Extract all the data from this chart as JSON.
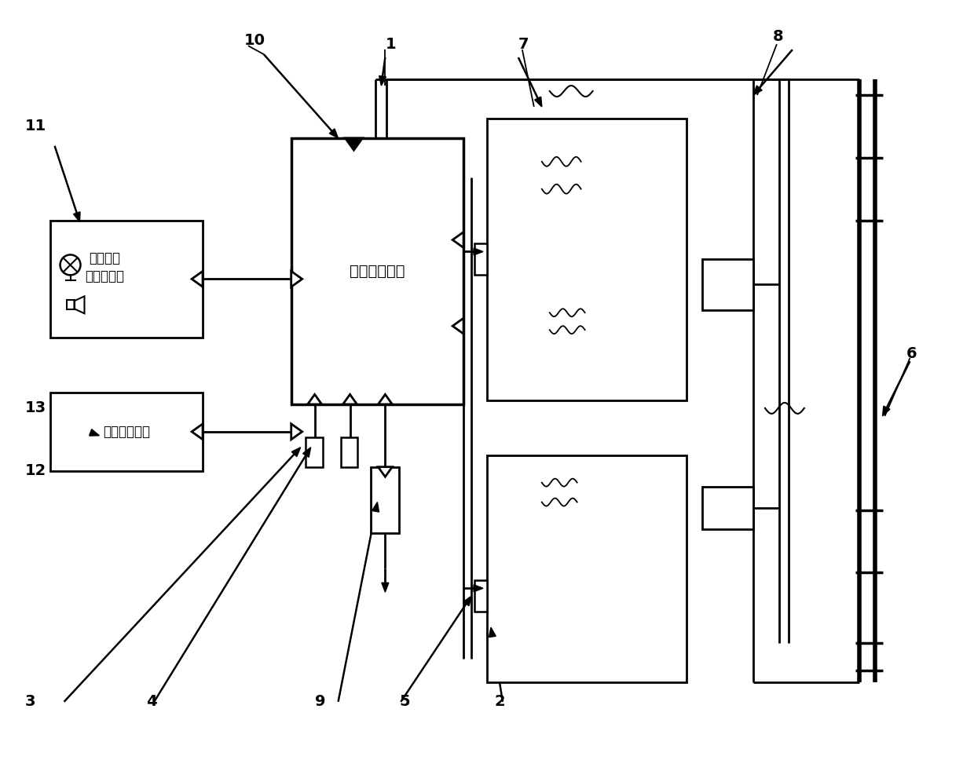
{
  "bg_color": "#ffffff",
  "fire_mgmt_label": "灭火管理系统",
  "vehicle_label_line1": "车辆仪表",
  "vehicle_label_line2": "报警显示屏",
  "battery_mgmt_label": "电池管理系统",
  "num_labels": [
    [
      "1",
      490,
      55
    ],
    [
      "2",
      630,
      895
    ],
    [
      "3",
      30,
      895
    ],
    [
      "4",
      185,
      895
    ],
    [
      "5",
      508,
      895
    ],
    [
      "6",
      1155,
      450
    ],
    [
      "7",
      660,
      55
    ],
    [
      "8",
      985,
      45
    ],
    [
      "9",
      400,
      895
    ],
    [
      "10",
      310,
      50
    ],
    [
      "11",
      30,
      160
    ],
    [
      "12",
      30,
      600
    ],
    [
      "13",
      30,
      520
    ]
  ]
}
